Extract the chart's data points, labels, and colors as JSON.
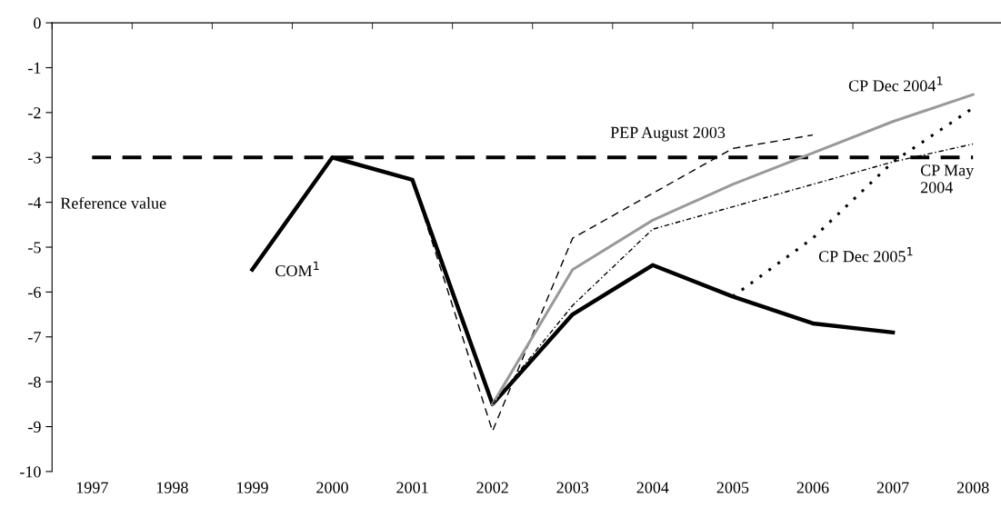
{
  "chart_data": {
    "type": "line",
    "categories": [
      "1997",
      "1998",
      "1999",
      "2000",
      "2001",
      "2002",
      "2003",
      "2004",
      "2005",
      "2006",
      "2007",
      "2008"
    ],
    "ylim": [
      -10,
      0
    ],
    "yticks": [
      0,
      -1,
      -2,
      -3,
      -4,
      -5,
      -6,
      -7,
      -8,
      -9,
      -10
    ],
    "grid": false,
    "legend": false,
    "marker": "none",
    "series": [
      {
        "name": "COM$^{1}$",
        "color": "#000000",
        "line_style": "solid",
        "values": [
          null,
          null,
          -5.5,
          -3.0,
          -3.5,
          -8.5,
          -6.5,
          -5.4,
          -6.1,
          -6.7,
          -6.9,
          null
        ]
      },
      {
        "name": "PEP August 2003",
        "color": "#000000",
        "line_style": "dashed",
        "values": [
          null,
          null,
          null,
          null,
          -3.5,
          -9.1,
          -4.8,
          -3.8,
          -2.8,
          -2.5,
          null,
          null
        ]
      },
      {
        "name": "CP Dec 2004$^{1}$",
        "color": "#999999",
        "line_style": "solid",
        "values": [
          null,
          null,
          null,
          null,
          null,
          -8.5,
          -5.5,
          -4.4,
          -3.6,
          -2.9,
          -2.2,
          -1.6
        ]
      },
      {
        "name": "CP May\n2004",
        "color": "#000000",
        "line_style": "dashdot",
        "values": [
          null,
          null,
          null,
          null,
          null,
          -8.5,
          -6.3,
          -4.6,
          -4.1,
          -3.6,
          -3.1,
          -2.7
        ]
      },
      {
        "name": "CP Dec 2005$^{1}$",
        "color": "#000000",
        "line_style": "dotted",
        "values": [
          null,
          null,
          null,
          null,
          null,
          null,
          null,
          null,
          -6.1,
          -4.8,
          -3.1,
          -1.9
        ]
      }
    ],
    "ref_lines": [
      {
        "axis": "y",
        "value": -3,
        "label": "Reference value",
        "color": "#000000",
        "line_style": "dashed"
      }
    ]
  }
}
